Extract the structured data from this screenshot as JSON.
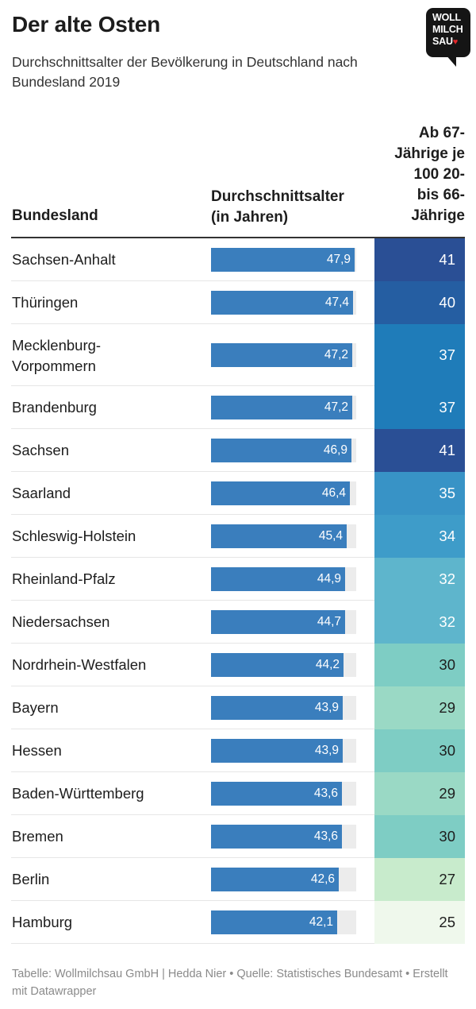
{
  "title": "Der alte Osten",
  "subtitle": "Durchschnittsalter der Bevölkerung in Deutschland nach Bundesland 2019",
  "logo": {
    "line1": "WOLL",
    "line2": "MILCH",
    "line3": "SAU",
    "heart": "♥"
  },
  "columns": {
    "name": "Bundesland",
    "age": "Durchschnittsalter\n(in Jahren)",
    "ratio": "Ab 67-\nJährige je\n100 20-\nbis 66-\nJährige"
  },
  "footer": "Tabelle: Wollmilchsau GmbH | Hedda Nier • Quelle: Statistisches Bundesamt • Erstellt mit Datawrapper",
  "colors": {
    "bar": "#3a7ebd",
    "bar_bg": "#ececec"
  },
  "chart_data": {
    "type": "table",
    "bar_max": 48.5,
    "rows": [
      {
        "name": "Sachsen-Anhalt",
        "age": 47.9,
        "age_label": "47,9",
        "ratio": 41,
        "color": "#2a4f95",
        "text": "#ffffff"
      },
      {
        "name": "Thüringen",
        "age": 47.4,
        "age_label": "47,4",
        "ratio": 40,
        "color": "#255ea2",
        "text": "#ffffff"
      },
      {
        "name": "Mecklenburg-\nVorpommern",
        "age": 47.2,
        "age_label": "47,2",
        "ratio": 37,
        "color": "#1f7cb9",
        "text": "#ffffff"
      },
      {
        "name": "Brandenburg",
        "age": 47.2,
        "age_label": "47,2",
        "ratio": 37,
        "color": "#1f7cb9",
        "text": "#ffffff"
      },
      {
        "name": "Sachsen",
        "age": 46.9,
        "age_label": "46,9",
        "ratio": 41,
        "color": "#2a4f95",
        "text": "#ffffff"
      },
      {
        "name": "Saarland",
        "age": 46.4,
        "age_label": "46,4",
        "ratio": 35,
        "color": "#3893c6",
        "text": "#ffffff"
      },
      {
        "name": "Schleswig-Holstein",
        "age": 45.4,
        "age_label": "45,4",
        "ratio": 34,
        "color": "#3e9cc9",
        "text": "#ffffff"
      },
      {
        "name": "Rheinland-Pfalz",
        "age": 44.9,
        "age_label": "44,9",
        "ratio": 32,
        "color": "#5eb5cc",
        "text": "#ffffff"
      },
      {
        "name": "Niedersachsen",
        "age": 44.7,
        "age_label": "44,7",
        "ratio": 32,
        "color": "#5eb5cc",
        "text": "#ffffff"
      },
      {
        "name": "Nordrhein-Westfalen",
        "age": 44.2,
        "age_label": "44,2",
        "ratio": 30,
        "color": "#7ecdc4",
        "text": "#1d1d1d"
      },
      {
        "name": "Bayern",
        "age": 43.9,
        "age_label": "43,9",
        "ratio": 29,
        "color": "#9ad9c5",
        "text": "#1d1d1d"
      },
      {
        "name": "Hessen",
        "age": 43.9,
        "age_label": "43,9",
        "ratio": 30,
        "color": "#7ecdc4",
        "text": "#1d1d1d"
      },
      {
        "name": "Baden-Württemberg",
        "age": 43.6,
        "age_label": "43,6",
        "ratio": 29,
        "color": "#9ad9c5",
        "text": "#1d1d1d"
      },
      {
        "name": "Bremen",
        "age": 43.6,
        "age_label": "43,6",
        "ratio": 30,
        "color": "#7ecdc4",
        "text": "#1d1d1d"
      },
      {
        "name": "Berlin",
        "age": 42.6,
        "age_label": "42,6",
        "ratio": 27,
        "color": "#c8ebcc",
        "text": "#1d1d1d"
      },
      {
        "name": "Hamburg",
        "age": 42.1,
        "age_label": "42,1",
        "ratio": 25,
        "color": "#eff8ec",
        "text": "#1d1d1d"
      }
    ]
  }
}
